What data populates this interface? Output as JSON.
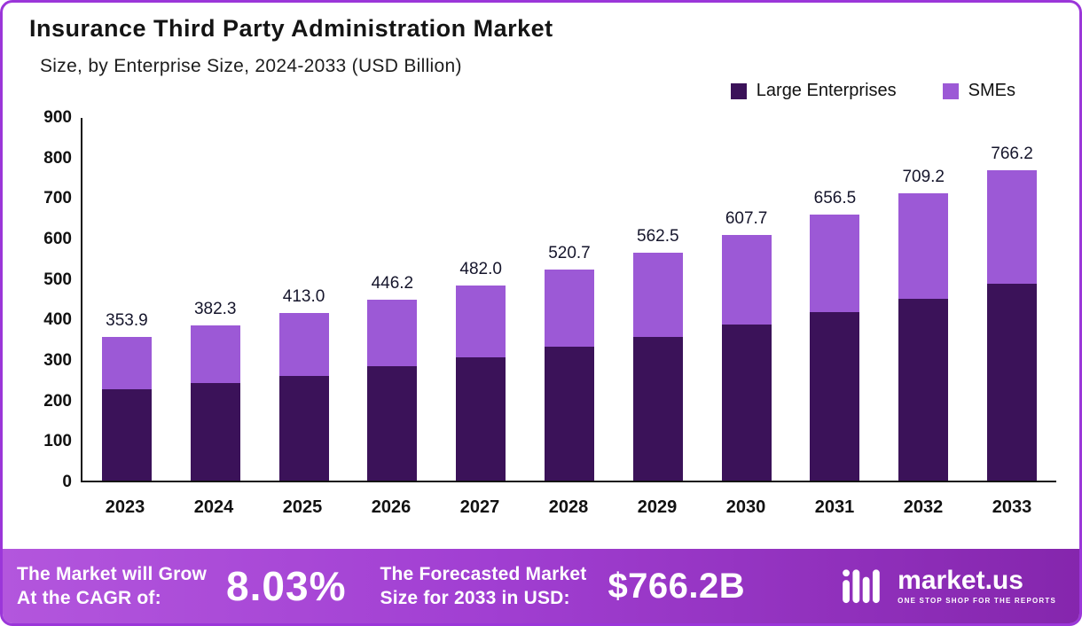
{
  "accent_colors": {
    "large_enterprises": "#3b1259",
    "smes": "#9c59d6",
    "banner_gradient_start": "#b356dd",
    "banner_gradient_end": "#8526ad",
    "border": "#9b36d9"
  },
  "header": {
    "title": "Insurance Third Party Administration Market",
    "subtitle": "Size, by Enterprise Size, 2024-2033 (USD Billion)"
  },
  "legend": [
    {
      "label": "Large Enterprises",
      "color": "#3b1259"
    },
    {
      "label": "SMEs",
      "color": "#9c59d6"
    }
  ],
  "chart_data": {
    "type": "bar",
    "stacked": true,
    "title": "Insurance Third Party Administration Market",
    "subtitle": "Size, by Enterprise Size, 2024-2033 (USD Billion)",
    "categories": [
      "2023",
      "2024",
      "2025",
      "2026",
      "2027",
      "2028",
      "2029",
      "2030",
      "2031",
      "2032",
      "2033"
    ],
    "series": [
      {
        "name": "Large Enterprises",
        "values": [
          225,
          240,
          258,
          282,
          305,
          330,
          355,
          385,
          415,
          448,
          487
        ]
      },
      {
        "name": "SMEs",
        "values": [
          128.9,
          142.3,
          155.0,
          164.2,
          177.0,
          190.7,
          207.5,
          222.7,
          241.5,
          261.2,
          279.2
        ]
      }
    ],
    "totals": [
      353.9,
      382.3,
      413.0,
      446.2,
      482.0,
      520.7,
      562.5,
      607.7,
      656.5,
      709.2,
      766.2
    ],
    "xlabel": "",
    "ylabel": "",
    "ylim": [
      0,
      900
    ],
    "yticks": [
      0,
      100,
      200,
      300,
      400,
      500,
      600,
      700,
      800,
      900
    ],
    "grid": false,
    "legend_position": "top-right"
  },
  "banner": {
    "cagr_label_line1": "The Market will Grow",
    "cagr_label_line2": "At the CAGR of:",
    "cagr_value": "8.03%",
    "forecast_label_line1": "The Forecasted Market",
    "forecast_label_line2": "Size for 2033 in USD:",
    "forecast_value": "$766.2B",
    "brand": {
      "name": "market.us",
      "tagline": "ONE STOP SHOP FOR THE REPORTS"
    }
  }
}
